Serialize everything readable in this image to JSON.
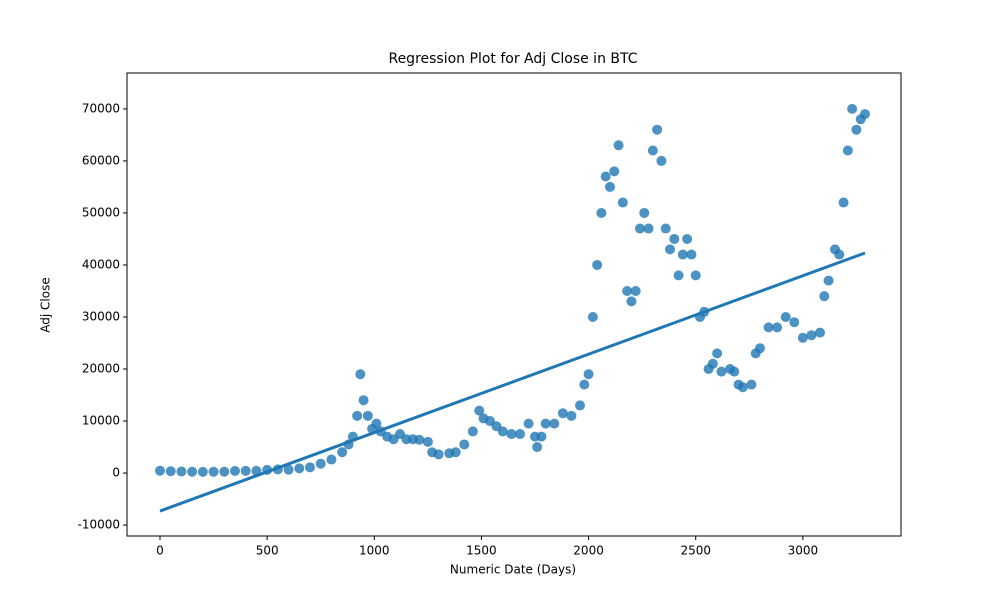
{
  "chart_data": {
    "type": "scatter",
    "title": "Regression Plot for Adj Close in BTC",
    "xlabel": "Numeric Date (Days)",
    "ylabel": "Adj Close",
    "xlim": [
      -154,
      3458
    ],
    "ylim": [
      -12100,
      76900
    ],
    "xticks": [
      0,
      500,
      1000,
      1500,
      2000,
      2500,
      3000
    ],
    "yticks": [
      -10000,
      0,
      10000,
      20000,
      30000,
      40000,
      50000,
      60000,
      70000
    ],
    "color": "#1f77b4",
    "grid": false,
    "x": [
      0,
      50,
      100,
      150,
      200,
      250,
      300,
      350,
      400,
      450,
      500,
      550,
      600,
      650,
      700,
      750,
      800,
      850,
      880,
      900,
      920,
      935,
      950,
      970,
      990,
      1010,
      1030,
      1060,
      1090,
      1120,
      1150,
      1180,
      1210,
      1250,
      1270,
      1300,
      1350,
      1380,
      1420,
      1460,
      1490,
      1510,
      1540,
      1570,
      1600,
      1640,
      1680,
      1720,
      1750,
      1760,
      1780,
      1800,
      1840,
      1880,
      1920,
      1960,
      1980,
      2000,
      2020,
      2040,
      2060,
      2080,
      2100,
      2120,
      2140,
      2160,
      2180,
      2200,
      2220,
      2240,
      2260,
      2280,
      2300,
      2320,
      2340,
      2360,
      2380,
      2400,
      2420,
      2440,
      2460,
      2480,
      2500,
      2520,
      2540,
      2560,
      2580,
      2600,
      2620,
      2660,
      2680,
      2700,
      2720,
      2760,
      2780,
      2800,
      2840,
      2880,
      2920,
      2960,
      3000,
      3040,
      3080,
      3100,
      3120,
      3150,
      3170,
      3190,
      3210,
      3230,
      3250,
      3270,
      3290
    ],
    "values": [
      450,
      350,
      300,
      250,
      230,
      240,
      250,
      400,
      430,
      420,
      600,
      700,
      650,
      900,
      1100,
      1800,
      2600,
      4000,
      5500,
      7000,
      11000,
      19000,
      14000,
      11000,
      8500,
      9500,
      8000,
      7000,
      6500,
      7500,
      6500,
      6500,
      6400,
      6000,
      4000,
      3600,
      3800,
      4000,
      5500,
      8000,
      12000,
      10500,
      10000,
      9000,
      8000,
      7500,
      7500,
      9500,
      7000,
      5000,
      7000,
      9500,
      9500,
      11500,
      11000,
      13000,
      17000,
      19000,
      30000,
      40000,
      50000,
      57000,
      55000,
      58000,
      63000,
      52000,
      35000,
      33000,
      35000,
      47000,
      50000,
      47000,
      62000,
      66000,
      60000,
      47000,
      43000,
      45000,
      38000,
      42000,
      45000,
      42000,
      38000,
      30000,
      31000,
      20000,
      21000,
      23000,
      19500,
      20000,
      19500,
      17000,
      16500,
      17000,
      23000,
      24000,
      28000,
      28000,
      30000,
      29000,
      26000,
      26500,
      27000,
      34000,
      37000,
      43000,
      42000,
      52000,
      62000,
      70000,
      66000,
      68000,
      69000
    ],
    "regression_line": {
      "x": [
        0,
        3290
      ],
      "y": [
        -7300,
        42300
      ]
    }
  }
}
